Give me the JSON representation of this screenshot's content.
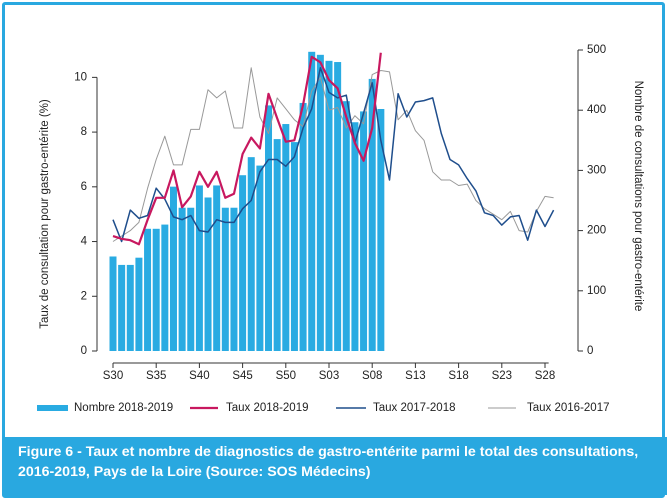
{
  "chart_data": {
    "type": "bar-line",
    "caption": "Figure 6 -  Taux et nombre de diagnostics de gastro-entérite parmi le total des consultations, 2016-2019, Pays de la Loire (Source: SOS Médecins)",
    "ylabel": "Taux de consultation pour gastro-entérite (%)",
    "y2label": "Nombre de consultations pour gastro-entérite",
    "categories": [
      "S30",
      null,
      null,
      null,
      null,
      "S35",
      null,
      null,
      null,
      null,
      "S40",
      null,
      null,
      null,
      null,
      "S45",
      null,
      null,
      null,
      null,
      "S50",
      null,
      null,
      null,
      null,
      "S03",
      null,
      null,
      null,
      null,
      "S08",
      null,
      null,
      null,
      null,
      "S13",
      null,
      null,
      null,
      null,
      "S18",
      null,
      null,
      null,
      null,
      "S23",
      null,
      null,
      null,
      null,
      "S28",
      null
    ],
    "ylim": [
      0,
      11
    ],
    "yticks": [
      0,
      2,
      4,
      6,
      8,
      10
    ],
    "y2lim": [
      0,
      500
    ],
    "y2ticks": [
      0,
      100,
      200,
      300,
      400,
      500
    ],
    "series": [
      {
        "name": "Nombre 2018-2019",
        "kind": "bar",
        "axis": "y2",
        "color": "#29abe2",
        "values": [
          157,
          143,
          143,
          155,
          203,
          203,
          210,
          273,
          238,
          238,
          275,
          255,
          275,
          238,
          238,
          292,
          322,
          308,
          408,
          352,
          377,
          347,
          412,
          497,
          492,
          482,
          480,
          415,
          380,
          398,
          452,
          402,
          null,
          null,
          null,
          null,
          null,
          null,
          null,
          null,
          null,
          null,
          null,
          null,
          null,
          null,
          null,
          null,
          null,
          null,
          null,
          null
        ]
      },
      {
        "name": "Taux 2018-2019",
        "kind": "line",
        "color": "#c8185f",
        "values": [
          4.2,
          4.1,
          4.05,
          3.9,
          4.8,
          5.6,
          5.6,
          6.6,
          5.25,
          5.65,
          6.55,
          6.0,
          6.55,
          5.6,
          5.75,
          7.2,
          7.8,
          7.4,
          9.4,
          8.5,
          7.65,
          7.7,
          9.0,
          10.75,
          10.55,
          9.9,
          9.6,
          8.55,
          7.6,
          6.95,
          8.15,
          10.9,
          null,
          null,
          null,
          null,
          null,
          null,
          null,
          null,
          null,
          null,
          null,
          null,
          null,
          null,
          null,
          null,
          null,
          null,
          null,
          null
        ]
      },
      {
        "name": "Taux 2017-2018",
        "kind": "line",
        "color": "#1f4e8c",
        "values": [
          4.8,
          4.0,
          5.15,
          4.85,
          4.95,
          5.95,
          5.55,
          4.9,
          4.8,
          4.95,
          4.4,
          4.35,
          4.8,
          4.7,
          4.7,
          5.2,
          5.5,
          6.55,
          7.0,
          7.0,
          6.75,
          7.1,
          8.15,
          8.85,
          10.35,
          9.45,
          9.25,
          9.35,
          7.6,
          8.7,
          9.8,
          7.7,
          6.25,
          9.4,
          8.55,
          9.1,
          9.15,
          9.25,
          7.95,
          7.0,
          6.8,
          6.3,
          5.85,
          5.05,
          4.95,
          4.6,
          4.9,
          4.95,
          4.05,
          5.15,
          4.55,
          5.15
        ]
      },
      {
        "name": "Taux 2016-2017",
        "kind": "line",
        "color": "#999999",
        "values": [
          4.0,
          4.2,
          4.4,
          4.7,
          5.95,
          7.0,
          7.85,
          6.8,
          6.8,
          8.1,
          8.1,
          9.55,
          9.25,
          9.5,
          8.15,
          8.15,
          10.35,
          8.55,
          7.95,
          9.25,
          8.85,
          8.45,
          8.2,
          9.5,
          10.0,
          8.8,
          8.9,
          8.15,
          8.6,
          8.3,
          10.1,
          10.25,
          10.2,
          8.45,
          8.8,
          8.05,
          7.7,
          6.55,
          6.25,
          6.25,
          6.05,
          6.1,
          5.5,
          5.2,
          5.0,
          4.8,
          5.1,
          4.4,
          4.35,
          5.1,
          5.65,
          5.6
        ]
      }
    ]
  }
}
